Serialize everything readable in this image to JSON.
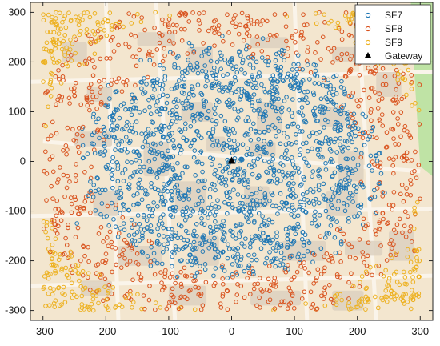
{
  "colors": {
    "SF7": "#1f77b4",
    "SF8": "#d9531e",
    "SF9": "#edb120",
    "Gateway": "#000000",
    "map_background": "#f3e6cf",
    "map_road": "#faf4ea",
    "map_building": "#dcd0bf",
    "map_park": "#bfe3a5"
  },
  "chart_data": {
    "type": "scatter",
    "title": "",
    "xlabel": "",
    "ylabel": "",
    "xlim": [
      -320,
      320
    ],
    "ylim": [
      -320,
      320
    ],
    "xticks": [
      -300,
      -200,
      -100,
      0,
      100,
      200,
      300
    ],
    "yticks": [
      -300,
      -200,
      -100,
      0,
      100,
      200,
      300
    ],
    "xtick_labels": [
      "-300",
      "-200",
      "-100",
      "0",
      "100",
      "200",
      "300"
    ],
    "ytick_labels": [
      "-300",
      "-200",
      "-100",
      "0",
      "100",
      "200",
      "300"
    ],
    "grid": false,
    "legend_position": "top-right",
    "background": "street map",
    "zones": [
      {
        "name": "SF7",
        "marker": "open-circle",
        "r_min": 0,
        "r_max": 250
      },
      {
        "name": "SF8",
        "marker": "open-circle",
        "r_min": 200,
        "r_max": 340
      },
      {
        "name": "SF9",
        "marker": "open-circle",
        "r_min": 300,
        "r_max": 460
      }
    ],
    "series": [
      {
        "name": "SF7",
        "marker": "open-circle",
        "points": [
          [
            -246,
            -125
          ],
          [
            -196,
            153
          ],
          [
            -123,
            -199
          ],
          [
            -88,
            80
          ],
          [
            -43,
            -53
          ],
          [
            12,
            219
          ],
          [
            61,
            -13
          ],
          [
            121,
            -181
          ],
          [
            179,
            97
          ],
          [
            234,
            -45
          ],
          [
            -150,
            20
          ],
          [
            -20,
            120
          ],
          [
            95,
            35
          ],
          [
            -60,
            -150
          ],
          [
            150,
            -100
          ]
        ]
      },
      {
        "name": "SF8",
        "marker": "open-circle",
        "points": [
          [
            -270,
            130
          ],
          [
            -240,
            -200
          ],
          [
            -160,
            255
          ],
          [
            -90,
            -285
          ],
          [
            120,
            275
          ],
          [
            215,
            -210
          ],
          [
            265,
            75
          ],
          [
            275,
            -130
          ],
          [
            -285,
            10
          ],
          [
            40,
            -290
          ]
        ]
      },
      {
        "name": "SF9",
        "marker": "open-circle",
        "points": [
          [
            -285,
            280
          ],
          [
            -280,
            -280
          ],
          [
            285,
            -275
          ],
          [
            270,
            255
          ],
          [
            -200,
            -290
          ],
          [
            -300,
            200
          ],
          [
            295,
            -200
          ],
          [
            210,
            290
          ]
        ]
      },
      {
        "name": "Gateway",
        "marker": "filled-triangle",
        "points": [
          [
            0,
            0
          ]
        ]
      }
    ]
  }
}
